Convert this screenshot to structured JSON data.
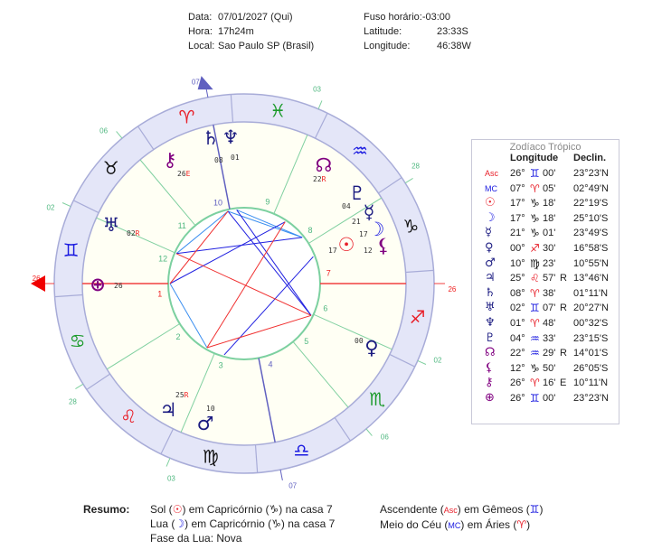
{
  "header": {
    "date_label": "Data:",
    "date": "07/01/2027 (Qui)",
    "time_label": "Hora:",
    "time": "17h24m",
    "place_label": "Local:",
    "place": "Sao Paulo SP (Brasil)",
    "tz_label": "Fuso horário:",
    "tz": "-03:00",
    "lat_label": "Latitude:",
    "lat": "23:33S",
    "lon_label": "Longitude:",
    "lon": "46:38W"
  },
  "chart": {
    "ascendant_longitude": 86,
    "signs": [
      {
        "name": "Aries",
        "glyph": "♈",
        "color": "#e8202a"
      },
      {
        "name": "Taurus",
        "glyph": "♉",
        "color": "#111111"
      },
      {
        "name": "Gemini",
        "glyph": "♊",
        "color": "#1a1ae0"
      },
      {
        "name": "Cancer",
        "glyph": "♋",
        "color": "#1a9a2a"
      },
      {
        "name": "Leo",
        "glyph": "♌",
        "color": "#e8202a"
      },
      {
        "name": "Virgo",
        "glyph": "♍",
        "color": "#111111"
      },
      {
        "name": "Libra",
        "glyph": "♎",
        "color": "#1a1ae0"
      },
      {
        "name": "Scorpio",
        "glyph": "♏",
        "color": "#1a9a2a"
      },
      {
        "name": "Sagittarius",
        "glyph": "♐",
        "color": "#e8202a"
      },
      {
        "name": "Capricorn",
        "glyph": "♑",
        "color": "#111111"
      },
      {
        "name": "Aquarius",
        "glyph": "♒",
        "color": "#1a1ae0"
      },
      {
        "name": "Pisces",
        "glyph": "♓",
        "color": "#1a9a2a"
      }
    ],
    "cusps": [
      {
        "house": "1",
        "longitude": 86,
        "label": "26"
      },
      {
        "house": "2",
        "longitude": 118,
        "label": "28"
      },
      {
        "house": "3",
        "longitude": 153,
        "label": "03"
      },
      {
        "house": "4",
        "longitude": 187,
        "label": "07"
      },
      {
        "house": "5",
        "longitude": 216,
        "label": "06"
      },
      {
        "house": "6",
        "longitude": 242,
        "label": "02"
      },
      {
        "house": "7",
        "longitude": 266,
        "label": "26"
      },
      {
        "house": "8",
        "longitude": 298,
        "label": "28"
      },
      {
        "house": "9",
        "longitude": 333,
        "label": "03"
      },
      {
        "house": "10",
        "longitude": 7,
        "label": "07"
      },
      {
        "house": "11",
        "longitude": 36,
        "label": "06"
      },
      {
        "house": "12",
        "longitude": 62,
        "label": "02"
      }
    ],
    "planets": [
      {
        "key": "saturn",
        "glyph": "♄",
        "color": "#1a1a80",
        "deg": "08",
        "flag": "",
        "longitude": 8.63
      },
      {
        "key": "neptune",
        "glyph": "♆",
        "color": "#1a1a80",
        "deg": "01",
        "flag": "",
        "longitude": 1.8
      },
      {
        "key": "chiron",
        "glyph": "⚷",
        "color": "#800080",
        "deg": "26",
        "flag": "E",
        "longitude": 26.27
      },
      {
        "key": "node",
        "glyph": "☊",
        "color": "#800080",
        "deg": "22",
        "flag": "R",
        "longitude": 322.48
      },
      {
        "key": "pluto",
        "glyph": "♇",
        "color": "#1a1a80",
        "deg": "04",
        "flag": "",
        "longitude": 304.55
      },
      {
        "key": "mercury",
        "glyph": "☿",
        "color": "#1a1a80",
        "deg": "21",
        "flag": "",
        "longitude": 291.02
      },
      {
        "key": "moon",
        "glyph": "☽",
        "color": "#1a1ae0",
        "deg": "17",
        "flag": "",
        "longitude": 287.3
      },
      {
        "key": "sun",
        "glyph": "☉",
        "color": "#e8202a",
        "deg": "17",
        "flag": "",
        "longitude": 287.3
      },
      {
        "key": "lilith",
        "glyph": "⚸",
        "color": "#800080",
        "deg": "12",
        "flag": "",
        "longitude": 282.83
      },
      {
        "key": "uranus",
        "glyph": "♅",
        "color": "#1a1a80",
        "deg": "02",
        "flag": "R",
        "longitude": 62.12
      },
      {
        "key": "fortune",
        "glyph": "⊕",
        "color": "#800080",
        "deg": "26",
        "flag": "",
        "longitude": 86
      },
      {
        "key": "venus",
        "glyph": "♀",
        "color": "#1a1a80",
        "deg": "00",
        "flag": "",
        "longitude": 240.5
      },
      {
        "key": "jupiter",
        "glyph": "♃",
        "color": "#1a1a80",
        "deg": "25",
        "flag": "R",
        "longitude": 145.95
      },
      {
        "key": "mars",
        "glyph": "♂",
        "color": "#1a1a80",
        "deg": "10",
        "flag": "",
        "longitude": 160.38
      }
    ],
    "aspects": [
      {
        "a": "uranus",
        "b": "saturn",
        "color": "#3a8ef0"
      },
      {
        "a": "neptune",
        "b": "pluto",
        "color": "#3a8ef0"
      },
      {
        "a": "saturn",
        "b": "pluto",
        "color": "#3a8ef0"
      },
      {
        "a": "uranus",
        "b": "pluto",
        "color": "#2020e0"
      },
      {
        "a": "fortune",
        "b": "node",
        "color": "#2020e0"
      },
      {
        "a": "fortune",
        "b": "jupiter",
        "color": "#3a8ef0"
      },
      {
        "a": "saturn",
        "b": "venus",
        "color": "#2020e0"
      },
      {
        "a": "neptune",
        "b": "venus",
        "color": "#2020e0"
      },
      {
        "a": "mars",
        "b": "sun",
        "color": "#2020e0"
      },
      {
        "a": "uranus",
        "b": "venus",
        "color": "#f03030"
      },
      {
        "a": "jupiter",
        "b": "venus",
        "color": "#f03030"
      },
      {
        "a": "jupiter",
        "b": "node",
        "color": "#f03030"
      },
      {
        "a": "fortune",
        "b": "saturn",
        "color": "#f03030"
      }
    ]
  },
  "table": {
    "title": "Zodíaco Trópico",
    "col_longitude": "Longitude",
    "col_declination": "Declin.",
    "rows": [
      {
        "point": "Asc",
        "glyph": "Asc",
        "glyph_color": "#e8202a",
        "deg": "26°",
        "sign": "♊",
        "sign_color": "#1a1ae0",
        "min": "00'",
        "flag": "",
        "decl": "23°23'N"
      },
      {
        "point": "MC",
        "glyph": "MC",
        "glyph_color": "#1a1ae0",
        "deg": "07°",
        "sign": "♈",
        "sign_color": "#e8202a",
        "min": "05'",
        "flag": "",
        "decl": "02°49'N"
      },
      {
        "point": "Sun",
        "glyph": "☉",
        "glyph_color": "#e8202a",
        "deg": "17°",
        "sign": "♑",
        "sign_color": "#111111",
        "min": "18'",
        "flag": "",
        "decl": "22°19'S"
      },
      {
        "point": "Moon",
        "glyph": "☽",
        "glyph_color": "#1a1ae0",
        "deg": "17°",
        "sign": "♑",
        "sign_color": "#111111",
        "min": "18'",
        "flag": "",
        "decl": "25°10'S"
      },
      {
        "point": "Mercury",
        "glyph": "☿",
        "glyph_color": "#1a1a80",
        "deg": "21°",
        "sign": "♑",
        "sign_color": "#111111",
        "min": "01'",
        "flag": "",
        "decl": "23°49'S"
      },
      {
        "point": "Venus",
        "glyph": "♀",
        "glyph_color": "#1a1a80",
        "deg": "00°",
        "sign": "♐",
        "sign_color": "#e8202a",
        "min": "30'",
        "flag": "",
        "decl": "16°58'S"
      },
      {
        "point": "Mars",
        "glyph": "♂",
        "glyph_color": "#1a1a80",
        "deg": "10°",
        "sign": "♍",
        "sign_color": "#111111",
        "min": "23'",
        "flag": "",
        "decl": "10°55'N"
      },
      {
        "point": "Jupiter",
        "glyph": "♃",
        "glyph_color": "#1a1a80",
        "deg": "25°",
        "sign": "♌",
        "sign_color": "#e8202a",
        "min": "57'",
        "flag": "R",
        "decl": "13°46'N"
      },
      {
        "point": "Saturn",
        "glyph": "♄",
        "glyph_color": "#1a1a80",
        "deg": "08°",
        "sign": "♈",
        "sign_color": "#e8202a",
        "min": "38'",
        "flag": "",
        "decl": "01°11'N"
      },
      {
        "point": "Uranus",
        "glyph": "♅",
        "glyph_color": "#1a1a80",
        "deg": "02°",
        "sign": "♊",
        "sign_color": "#1a1ae0",
        "min": "07'",
        "flag": "R",
        "decl": "20°27'N"
      },
      {
        "point": "Neptune",
        "glyph": "♆",
        "glyph_color": "#1a1a80",
        "deg": "01°",
        "sign": "♈",
        "sign_color": "#e8202a",
        "min": "48'",
        "flag": "",
        "decl": "00°32'S"
      },
      {
        "point": "Pluto",
        "glyph": "♇",
        "glyph_color": "#1a1a80",
        "deg": "04°",
        "sign": "♒",
        "sign_color": "#1a1ae0",
        "min": "33'",
        "flag": "",
        "decl": "23°15'S"
      },
      {
        "point": "Node",
        "glyph": "☊",
        "glyph_color": "#800080",
        "deg": "22°",
        "sign": "♒",
        "sign_color": "#1a1ae0",
        "min": "29'",
        "flag": "R",
        "decl": "14°01'S"
      },
      {
        "point": "Lilith",
        "glyph": "⚸",
        "glyph_color": "#800080",
        "deg": "12°",
        "sign": "♑",
        "sign_color": "#111111",
        "min": "50'",
        "flag": "",
        "decl": "26°05'S"
      },
      {
        "point": "Chiron",
        "glyph": "⚷",
        "glyph_color": "#800080",
        "deg": "26°",
        "sign": "♈",
        "sign_color": "#e8202a",
        "min": "16'",
        "flag": "E",
        "decl": "10°11'N"
      },
      {
        "point": "Fortune",
        "glyph": "⊕",
        "glyph_color": "#800080",
        "deg": "26°",
        "sign": "♊",
        "sign_color": "#1a1ae0",
        "min": "00'",
        "flag": "",
        "decl": "23°23'N"
      }
    ]
  },
  "summary": {
    "label": "Resumo:",
    "sun": {
      "a": "Sol (",
      "glyph": "☉",
      "b": ") em Capricórnio (",
      "sign": "♑",
      "c": ") na casa 7"
    },
    "moon": {
      "a": "Lua (",
      "glyph": "☽",
      "b": ") em Capricórnio (",
      "sign": "♑",
      "c": ") na casa 7"
    },
    "phase": "Fase da Lua: Nova",
    "asc": {
      "a": "Ascendente (",
      "glyph": "Asc",
      "b": ") em Gêmeos (",
      "sign": "♊",
      "c": ")"
    },
    "mc": {
      "a": "Meio do Céu (",
      "glyph": "MC",
      "b": ") em Áries (",
      "sign": "♈",
      "c": ")"
    }
  }
}
